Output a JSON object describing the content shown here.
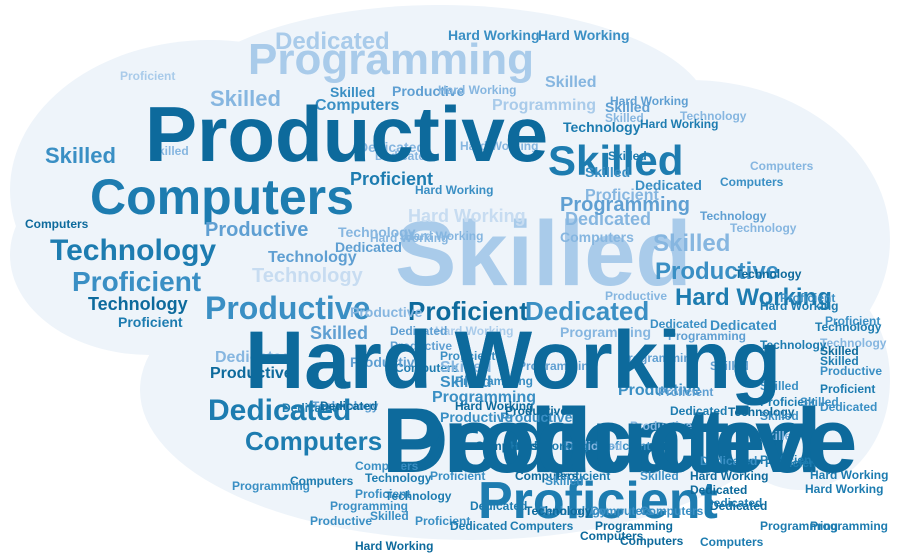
{
  "colors": {
    "background": "#ffffff",
    "cloud_fill": "#eef4fa",
    "palette": [
      "#0d6a9c",
      "#1d7cb0",
      "#3a8fc4",
      "#5f9fd2",
      "#86b6e0",
      "#a9cbea",
      "#c7dcf1"
    ]
  },
  "words": {
    "productive": "Productive",
    "programming": "Programming",
    "dedicated": "Dedicated",
    "hard_working": "Hard Working",
    "skilled": "Skilled",
    "computers": "Computers",
    "technology": "Technology",
    "proficient": "Proficient"
  },
  "cloud": [
    {
      "word": "hard_working",
      "color": "#3a8fc4"
    },
    {
      "word": "dedicated",
      "color": "#0d6a9c"
    },
    {
      "word": "productive",
      "color": "#86b6e0"
    },
    {
      "word": "skilled",
      "color": "#a9cbea"
    },
    {
      "word": "computers",
      "color": "#1d7cb0"
    },
    {
      "word": "proficient",
      "color": "#1d7cb0"
    },
    {
      "word": "programming",
      "color": "#a9cbea"
    },
    {
      "word": "skilled",
      "color": "#1d7cb0"
    },
    {
      "word": "technology",
      "color": "#1d7cb0"
    },
    {
      "word": "productive",
      "color": "#3a8fc4"
    },
    {
      "word": "proficient",
      "color": "#0d6a9c"
    },
    {
      "word": "dedicated",
      "color": "#1d7cb0"
    },
    {
      "word": "computers",
      "color": "#1d7cb0"
    },
    {
      "word": "proficient",
      "color": "#3a8fc4"
    },
    {
      "word": "dedicated",
      "color": "#3a8fc4"
    },
    {
      "word": "hard_working",
      "color": "#1d7cb0"
    },
    {
      "word": "productive",
      "color": "#3a8fc4"
    },
    {
      "word": "productive",
      "color": "#5f9fd2"
    },
    {
      "word": "dedicated",
      "color": "#a9cbea"
    },
    {
      "word": "skilled",
      "color": "#86b6e0"
    },
    {
      "word": "technology",
      "color": "#0d6a9c"
    },
    {
      "word": "skilled",
      "color": "#3a8fc4"
    },
    {
      "word": "programming",
      "color": "#a9cbea"
    },
    {
      "word": "hard_working",
      "color": "#c7dcf1"
    },
    {
      "word": "technology",
      "color": "#c7dcf1"
    },
    {
      "word": "skilled",
      "color": "#86b6e0"
    },
    {
      "word": "dedicated",
      "color": "#86b6e0"
    },
    {
      "word": "skilled",
      "color": "#86b6e0"
    },
    {
      "word": "computers",
      "color": "#3a8fc4"
    },
    {
      "word": "hard_working",
      "color": "#3a8fc4"
    },
    {
      "word": "technology",
      "color": "#1d7cb0"
    },
    {
      "word": "proficient",
      "color": "#1d7cb0"
    },
    {
      "word": "skilled",
      "color": "#5f9fd2"
    },
    {
      "word": "productive",
      "color": "#3a8fc4"
    },
    {
      "word": "programming",
      "color": "#3a8fc4"
    },
    {
      "word": "computers",
      "color": "#86b6e0"
    },
    {
      "word": "computers",
      "color": "#0d6a9c"
    },
    {
      "word": "programming",
      "color": "#5f9fd2"
    },
    {
      "word": "skilled",
      "color": "#3a8fc4"
    },
    {
      "word": "productive",
      "color": "#5f9fd2"
    },
    {
      "word": "dedicated",
      "color": "#5f9fd2"
    },
    {
      "word": "technology",
      "color": "#5f9fd2"
    },
    {
      "word": "proficient",
      "color": "#86b6e0"
    },
    {
      "word": "skilled",
      "color": "#86b6e0"
    },
    {
      "word": "hard_working",
      "color": "#86b6e0"
    },
    {
      "word": "hard_working",
      "color": "#3a8fc4"
    },
    {
      "word": "hard_working",
      "color": "#3a8fc4"
    },
    {
      "word": "dedicated",
      "color": "#3a8fc4"
    },
    {
      "word": "skilled",
      "color": "#3a8fc4"
    },
    {
      "word": "proficient",
      "color": "#1d7cb0"
    },
    {
      "word": "proficient",
      "color": "#1d7cb0"
    },
    {
      "word": "proficient",
      "color": "#3a8fc4"
    },
    {
      "word": "proficient",
      "color": "#a9cbea"
    },
    {
      "word": "technology",
      "color": "#0d6a9c"
    },
    {
      "word": "computers",
      "color": "#1d7cb0"
    },
    {
      "word": "skilled",
      "color": "#86b6e0"
    },
    {
      "word": "skilled",
      "color": "#3a8fc4"
    },
    {
      "word": "productive",
      "color": "#3a8fc4"
    },
    {
      "word": "productive",
      "color": "#3a8fc4"
    },
    {
      "word": "technology",
      "color": "#86b6e0"
    },
    {
      "word": "hard_working",
      "color": "#a9cbea"
    },
    {
      "word": "dedicated",
      "color": "#86b6e0"
    },
    {
      "word": "dedicated",
      "color": "#3a8fc4"
    },
    {
      "word": "productive",
      "color": "#86b6e0"
    },
    {
      "word": "productive",
      "color": "#5f9fd2"
    },
    {
      "word": "dedicated",
      "color": "#5f9fd2"
    },
    {
      "word": "dedicated",
      "color": "#86b6e0"
    },
    {
      "word": "dedicated",
      "color": "#86b6e0"
    },
    {
      "word": "hard_working",
      "color": "#86b6e0"
    },
    {
      "word": "skilled",
      "color": "#5f9fd2"
    },
    {
      "word": "skilled",
      "color": "#86b6e0"
    },
    {
      "word": "skilled",
      "color": "#1d7cb0"
    },
    {
      "word": "skilled",
      "color": "#3a8fc4"
    },
    {
      "word": "skilled",
      "color": "#3a8fc4"
    },
    {
      "word": "skilled",
      "color": "#86b6e0"
    },
    {
      "word": "technology",
      "color": "#86b6e0"
    },
    {
      "word": "technology",
      "color": "#5f9fd2"
    },
    {
      "word": "technology",
      "color": "#0d6a9c"
    },
    {
      "word": "technology",
      "color": "#86b6e0"
    },
    {
      "word": "computers",
      "color": "#3a8fc4"
    },
    {
      "word": "computers",
      "color": "#86b6e0"
    },
    {
      "word": "programming",
      "color": "#86b6e0"
    },
    {
      "word": "programming",
      "color": "#5f9fd2"
    },
    {
      "word": "programming",
      "color": "#5f9fd2"
    },
    {
      "word": "programming",
      "color": "#5f9fd2"
    },
    {
      "word": "proficient",
      "color": "#1d7cb0"
    },
    {
      "word": "proficient",
      "color": "#3a8fc4"
    },
    {
      "word": "proficient",
      "color": "#5f9fd2"
    },
    {
      "word": "dedicated",
      "color": "#86b6e0"
    },
    {
      "word": "hard_working",
      "color": "#86b6e0"
    },
    {
      "word": "hard_working",
      "color": "#86b6e0"
    },
    {
      "word": "productive",
      "color": "#86b6e0"
    },
    {
      "word": "productive",
      "color": "#86b6e0"
    },
    {
      "word": "proficient",
      "color": "#1d7cb0"
    },
    {
      "word": "proficient",
      "color": "#1d7cb0"
    },
    {
      "word": "productive",
      "color": "#0d6a9c"
    },
    {
      "word": "programming",
      "color": "#3a8fc4"
    },
    {
      "word": "dedicated",
      "color": "#3a8fc4"
    },
    {
      "word": "hard_working",
      "color": "#5f9fd2"
    },
    {
      "word": "hard_working",
      "color": "#1d7cb0"
    },
    {
      "word": "technology",
      "color": "#1d7cb0"
    },
    {
      "word": "technology",
      "color": "#5f9fd2"
    },
    {
      "word": "skilled",
      "color": "#5f9fd2"
    },
    {
      "word": "productive",
      "color": "#5f9fd2"
    },
    {
      "word": "dedicated",
      "color": "#1d7cb0"
    },
    {
      "word": "programming",
      "color": "#3a8fc4"
    },
    {
      "word": "computers",
      "color": "#1d7cb0"
    },
    {
      "word": "technology",
      "color": "#86b6e0"
    },
    {
      "word": "dedicated",
      "color": "#1d7cb0"
    },
    {
      "word": "computers",
      "color": "#3a8fc4"
    },
    {
      "word": "skilled",
      "color": "#3a8fc4"
    },
    {
      "word": "proficient",
      "color": "#3a8fc4"
    },
    {
      "word": "technology",
      "color": "#1d7cb0"
    },
    {
      "word": "dedicated",
      "color": "#0d6a9c"
    },
    {
      "word": "computers",
      "color": "#1d7cb0"
    },
    {
      "word": "hard_working",
      "color": "#1d7cb0"
    },
    {
      "word": "computers",
      "color": "#0d6a9c"
    },
    {
      "word": "productive",
      "color": "#0d6a9c"
    },
    {
      "word": "hard_working",
      "color": "#0d6a9c"
    },
    {
      "word": "computers",
      "color": "#0d6a9c"
    },
    {
      "word": "hard_working",
      "color": "#0d6a9c"
    },
    {
      "word": "dedicated",
      "color": "#0d6a9c"
    },
    {
      "word": "dedicated",
      "color": "#0d6a9c"
    },
    {
      "word": "programming",
      "color": "#0d6a9c"
    },
    {
      "word": "skilled",
      "color": "#3a8fc4"
    },
    {
      "word": "proficient",
      "color": "#3a8fc4"
    },
    {
      "word": "programming",
      "color": "#3a8fc4"
    },
    {
      "word": "productive",
      "color": "#3a8fc4"
    },
    {
      "word": "proficient",
      "color": "#3a8fc4"
    },
    {
      "word": "computers",
      "color": "#3a8fc4"
    },
    {
      "word": "computers",
      "color": "#3a8fc4"
    },
    {
      "word": "technology",
      "color": "#3a8fc4"
    },
    {
      "word": "dedicated",
      "color": "#3a8fc4"
    },
    {
      "word": "skilled",
      "color": "#3a8fc4"
    },
    {
      "word": "productive",
      "color": "#3a8fc4"
    },
    {
      "word": "skilled",
      "color": "#3a8fc4"
    },
    {
      "word": "dedicated",
      "color": "#3a8fc4"
    },
    {
      "word": "skilled",
      "color": "#0d6a9c"
    },
    {
      "word": "proficient",
      "color": "#3a8fc4"
    },
    {
      "word": "proficient",
      "color": "#3a8fc4"
    },
    {
      "word": "hard_working",
      "color": "#1d7cb0"
    },
    {
      "word": "skilled",
      "color": "#1d7cb0"
    },
    {
      "word": "technology",
      "color": "#1d7cb0"
    },
    {
      "word": "technology",
      "color": "#1d7cb0"
    },
    {
      "word": "proficient",
      "color": "#1d7cb0"
    },
    {
      "word": "hard_working",
      "color": "#1d7cb0"
    },
    {
      "word": "hard_working",
      "color": "#1d7cb0"
    },
    {
      "word": "computers",
      "color": "#1d7cb0"
    },
    {
      "word": "programming",
      "color": "#1d7cb0"
    },
    {
      "word": "programming",
      "color": "#1d7cb0"
    },
    {
      "word": "dedicated",
      "color": "#1d7cb0"
    },
    {
      "word": "dedicated",
      "color": "#1d7cb0"
    },
    {
      "word": "dedicated",
      "color": "#1d7cb0"
    },
    {
      "word": "technology",
      "color": "#0d6a9c"
    },
    {
      "word": "computers",
      "color": "#0d6a9c"
    },
    {
      "word": "computers",
      "color": "#0d6a9c"
    },
    {
      "word": "hard_working",
      "color": "#0d6a9c"
    },
    {
      "word": "hard_working",
      "color": "#0d6a9c"
    },
    {
      "word": "productive",
      "color": "#0d6a9c"
    },
    {
      "word": "productive",
      "color": "#0d6a9c"
    }
  ]
}
